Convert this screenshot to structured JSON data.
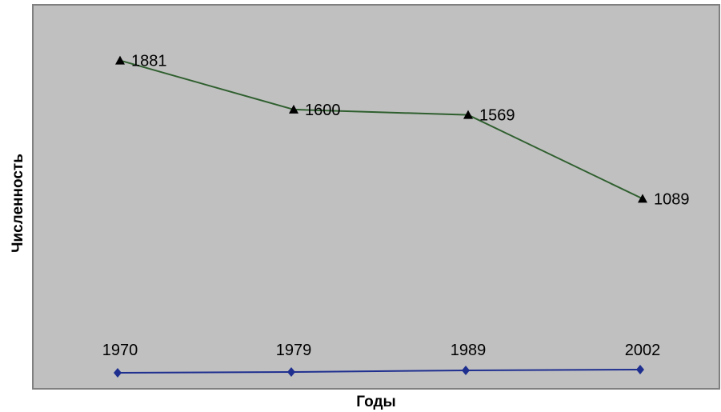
{
  "chart_data": {
    "type": "line",
    "title": "",
    "xlabel": "Годы",
    "ylabel": "Численность",
    "categories": [
      "1970",
      "1979",
      "1989",
      "2002"
    ],
    "series": [
      {
        "values": [
          1881,
          1600,
          1569,
          1089
        ],
        "marker": "triangle",
        "color": "#2f5f2f",
        "data_labels": [
          "1881",
          "1600",
          "1569",
          "1089"
        ]
      },
      {
        "values": [
          1970,
          1979,
          1989,
          2002
        ],
        "marker": "diamond",
        "color": "#1f2f8f",
        "data_labels": [
          "1970",
          "1979",
          "1989",
          "2002"
        ]
      }
    ],
    "ylim": [
      0,
      2200
    ],
    "grid": false,
    "legend": "none",
    "plot_background": "#c0c0c0"
  }
}
